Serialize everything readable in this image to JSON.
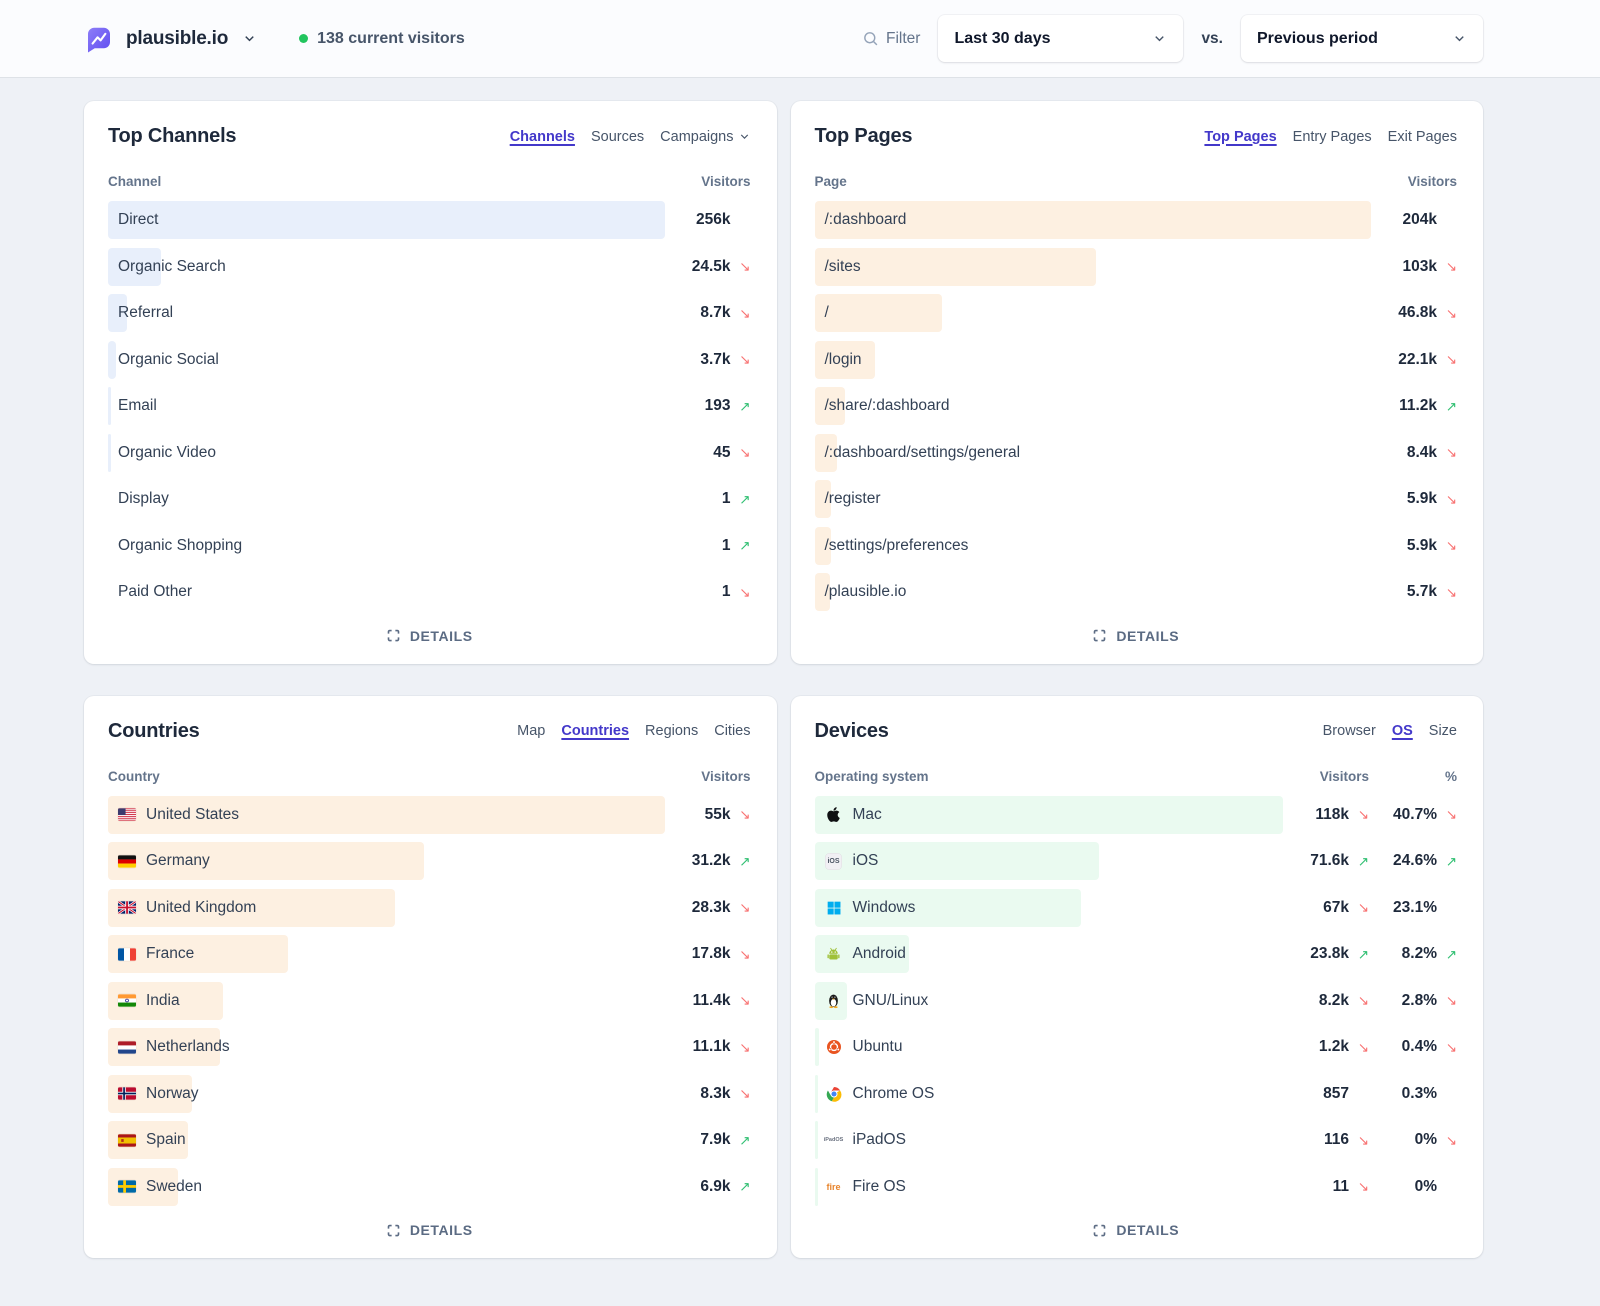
{
  "theme": {
    "accent_active_tab": "#4338ca",
    "trend_up": "#2fbf71",
    "trend_down": "#f87171",
    "live_dot": "#22c55e",
    "logo_purple": "#6e5cf5"
  },
  "header": {
    "site": "plausible.io",
    "visitors_badge": "138 current visitors",
    "filter_label": "Filter",
    "date_range": "Last 30 days",
    "vs_label": "vs.",
    "comparison": "Previous period"
  },
  "details_label": "DETAILS",
  "panels": {
    "channels": {
      "title": "Top Channels",
      "bar_color": "#e8effb",
      "has_share": false,
      "tabs": [
        {
          "label": "Channels",
          "active": true
        },
        {
          "label": "Sources",
          "active": false
        },
        {
          "label": "Campaigns",
          "active": false,
          "chevron": true
        }
      ],
      "columns": {
        "label": "Channel",
        "visitors": "Visitors"
      },
      "rows": [
        {
          "label": "Direct",
          "value": "256k",
          "trend": "none",
          "bar": 100
        },
        {
          "label": "Organic Search",
          "value": "24.5k",
          "trend": "down",
          "bar": 9.6
        },
        {
          "label": "Referral",
          "value": "8.7k",
          "trend": "down",
          "bar": 3.4
        },
        {
          "label": "Organic Social",
          "value": "3.7k",
          "trend": "down",
          "bar": 1.45
        },
        {
          "label": "Email",
          "value": "193",
          "trend": "up",
          "bar": 0.4
        },
        {
          "label": "Organic Video",
          "value": "45",
          "trend": "down",
          "bar": 0.35
        },
        {
          "label": "Display",
          "value": "1",
          "trend": "up",
          "bar": 0
        },
        {
          "label": "Organic Shopping",
          "value": "1",
          "trend": "up",
          "bar": 0
        },
        {
          "label": "Paid Other",
          "value": "1",
          "trend": "down",
          "bar": 0
        }
      ]
    },
    "pages": {
      "title": "Top Pages",
      "bar_color": "#fdf0e1",
      "has_share": false,
      "tabs": [
        {
          "label": "Top Pages",
          "active": true
        },
        {
          "label": "Entry Pages",
          "active": false
        },
        {
          "label": "Exit Pages",
          "active": false
        }
      ],
      "columns": {
        "label": "Page",
        "visitors": "Visitors"
      },
      "rows": [
        {
          "label": "/:dashboard",
          "value": "204k",
          "trend": "none",
          "bar": 100
        },
        {
          "label": "/sites",
          "value": "103k",
          "trend": "down",
          "bar": 50.5
        },
        {
          "label": "/",
          "value": "46.8k",
          "trend": "down",
          "bar": 22.9
        },
        {
          "label": "/login",
          "value": "22.1k",
          "trend": "down",
          "bar": 10.8
        },
        {
          "label": "/share/:dashboard",
          "value": "11.2k",
          "trend": "up",
          "bar": 5.5
        },
        {
          "label": "/:dashboard/settings/general",
          "value": "8.4k",
          "trend": "down",
          "bar": 4.1
        },
        {
          "label": "/register",
          "value": "5.9k",
          "trend": "down",
          "bar": 2.9
        },
        {
          "label": "/settings/preferences",
          "value": "5.9k",
          "trend": "down",
          "bar": 2.9
        },
        {
          "label": "/plausible.io",
          "value": "5.7k",
          "trend": "down",
          "bar": 2.8
        }
      ]
    },
    "countries": {
      "title": "Countries",
      "bar_color": "#fdf0e1",
      "has_share": false,
      "tabs": [
        {
          "label": "Map",
          "active": false
        },
        {
          "label": "Countries",
          "active": true
        },
        {
          "label": "Regions",
          "active": false
        },
        {
          "label": "Cities",
          "active": false
        }
      ],
      "columns": {
        "label": "Country",
        "visitors": "Visitors"
      },
      "rows": [
        {
          "label": "United States",
          "icon": "flag-us",
          "value": "55k",
          "trend": "down",
          "bar": 100
        },
        {
          "label": "Germany",
          "icon": "flag-de",
          "value": "31.2k",
          "trend": "up",
          "bar": 56.7
        },
        {
          "label": "United Kingdom",
          "icon": "flag-gb",
          "value": "28.3k",
          "trend": "down",
          "bar": 51.5
        },
        {
          "label": "France",
          "icon": "flag-fr",
          "value": "17.8k",
          "trend": "down",
          "bar": 32.4
        },
        {
          "label": "India",
          "icon": "flag-in",
          "value": "11.4k",
          "trend": "down",
          "bar": 20.7
        },
        {
          "label": "Netherlands",
          "icon": "flag-nl",
          "value": "11.1k",
          "trend": "down",
          "bar": 20.2
        },
        {
          "label": "Norway",
          "icon": "flag-no",
          "value": "8.3k",
          "trend": "down",
          "bar": 15.1
        },
        {
          "label": "Spain",
          "icon": "flag-es",
          "value": "7.9k",
          "trend": "up",
          "bar": 14.4
        },
        {
          "label": "Sweden",
          "icon": "flag-se",
          "value": "6.9k",
          "trend": "up",
          "bar": 12.5
        }
      ]
    },
    "devices": {
      "title": "Devices",
      "bar_color": "#eafaf0",
      "has_share": true,
      "tabs": [
        {
          "label": "Browser",
          "active": false
        },
        {
          "label": "OS",
          "active": true
        },
        {
          "label": "Size",
          "active": false
        }
      ],
      "columns": {
        "label": "Operating system",
        "visitors": "Visitors",
        "share": "%"
      },
      "rows": [
        {
          "label": "Mac",
          "icon": "apple",
          "value": "118k",
          "trend": "down",
          "share": "40.7%",
          "share_trend": "down",
          "bar": 100
        },
        {
          "label": "iOS",
          "icon": "ios",
          "value": "71.6k",
          "trend": "up",
          "share": "24.6%",
          "share_trend": "up",
          "bar": 60.7
        },
        {
          "label": "Windows",
          "icon": "windows",
          "value": "67k",
          "trend": "down",
          "share": "23.1%",
          "share_trend": "none",
          "bar": 56.8
        },
        {
          "label": "Android",
          "icon": "android",
          "value": "23.8k",
          "trend": "up",
          "share": "8.2%",
          "share_trend": "up",
          "bar": 20.2
        },
        {
          "label": "GNU/Linux",
          "icon": "linux",
          "value": "8.2k",
          "trend": "down",
          "share": "2.8%",
          "share_trend": "down",
          "bar": 6.9
        },
        {
          "label": "Ubuntu",
          "icon": "ubuntu",
          "value": "1.2k",
          "trend": "down",
          "share": "0.4%",
          "share_trend": "down",
          "bar": 1.0
        },
        {
          "label": "Chrome OS",
          "icon": "chrome",
          "value": "857",
          "trend": "none",
          "share": "0.3%",
          "share_trend": "none",
          "bar": 0.7
        },
        {
          "label": "iPadOS",
          "icon": "ipados",
          "value": "116",
          "trend": "down",
          "share": "0%",
          "share_trend": "down",
          "bar": 0.3
        },
        {
          "label": "Fire OS",
          "icon": "fireos",
          "value": "11",
          "trend": "down",
          "share": "0%",
          "share_trend": "none",
          "bar": 0.2
        }
      ]
    }
  }
}
